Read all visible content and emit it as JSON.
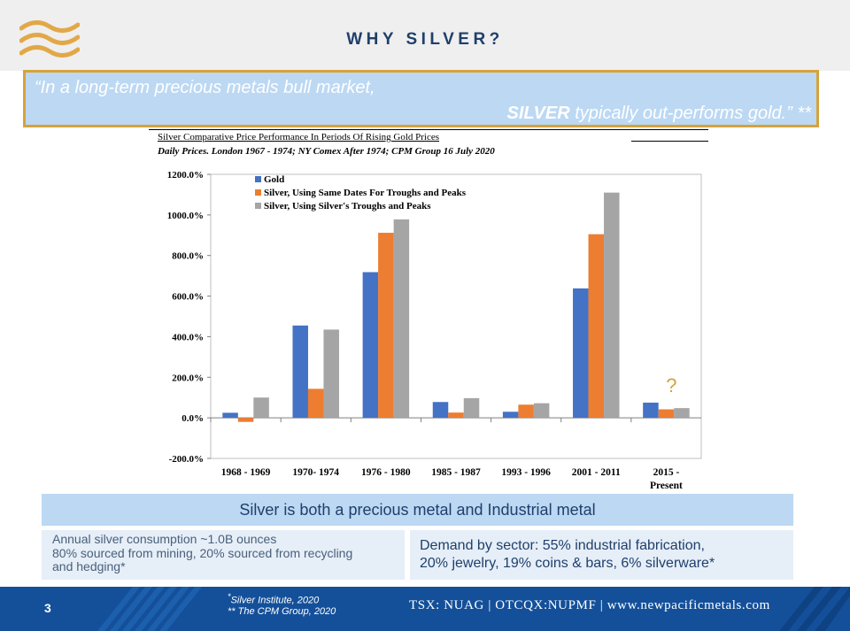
{
  "header": {
    "title": "WHY SILVER?"
  },
  "quote": {
    "line1": "“In a long-term precious metals bull market,",
    "line2_bold": "SILVER",
    "line2_rest": " typically out-performs gold.” **"
  },
  "colors": {
    "gold": "#4472c4",
    "silver_same": "#ed7d31",
    "silver_own": "#a5a5a5",
    "accent": "#d5a33a",
    "navy": "#1f3f6b",
    "footer": "#14509a"
  },
  "chart_data": {
    "type": "bar",
    "title": "Silver Comparative Price Performance In Periods Of Rising Gold Prices",
    "subtitle": "Daily Prices. London 1967 - 1974; NY Comex After 1974; CPM Group 16 July 2020",
    "categories": [
      "1968 - 1969",
      "1970- 1974",
      "1976 - 1980",
      "1985 - 1987",
      "1993 - 1996",
      "2001 - 2011",
      "2015 - Present"
    ],
    "series": [
      {
        "name": "Gold",
        "values": [
          25,
          455,
          718,
          78,
          30,
          638,
          75
        ]
      },
      {
        "name": "Silver, Using Same Dates For Troughs and Peaks",
        "values": [
          -20,
          143,
          912,
          26,
          65,
          905,
          42
        ]
      },
      {
        "name": "Silver, Using Silver's Troughs and Peaks",
        "values": [
          100,
          435,
          978,
          97,
          72,
          1110,
          48
        ]
      }
    ],
    "yticks": [
      "1200.0%",
      "1000.0%",
      "800.0%",
      "600.0%",
      "400.0%",
      "200.0%",
      "0.0%",
      "-200.0%"
    ],
    "ylim": [
      -200,
      1200
    ],
    "legend_position": "top-left",
    "annotation": "?"
  },
  "banner": {
    "text": "Silver is both a precious metal and Industrial metal"
  },
  "box_left": {
    "line1": "Annual silver consumption ~1.0B ounces",
    "line2": "80% sourced from mining, 20% sourced from recycling",
    "line3": "and hedging*"
  },
  "box_right": {
    "line1": "Demand by sector: 55% industrial fabrication,",
    "line2": "20% jewelry, 19% coins & bars, 6% silverware*"
  },
  "footer": {
    "page_number": "3",
    "source1_mark": "*",
    "source1": "Silver Institute, 2020",
    "source2": "** The CPM Group, 2020",
    "ticker": "TSX: NUAG  |  OTCQX:NUPMF |  www.newpacificmetals.com"
  }
}
